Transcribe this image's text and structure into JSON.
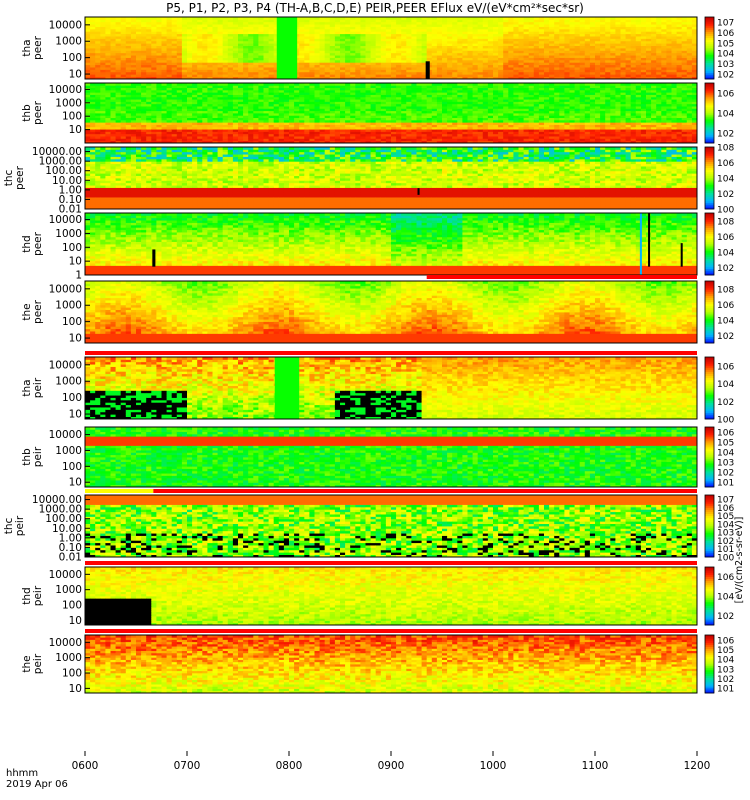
{
  "title": "P5, P1, P2, P3, P4 (TH-A,B,C,D,E) PEIR,PEER EFlux eV/(eV*cm²*sec*sr)",
  "time_axis": {
    "tick_labels": [
      "0600",
      "0700",
      "0800",
      "0900",
      "1000",
      "1100",
      "1200"
    ],
    "tick_values": [
      6,
      7,
      8,
      9,
      10,
      11,
      12
    ],
    "range": [
      6,
      12
    ],
    "label_line1": "hhmm",
    "label_line2": "2019 Apr 06"
  },
  "colorbar_title": "[eV/(cm2-s-sr-eV)]",
  "colors": {
    "scale": [
      "#0000ff",
      "#00b4ff",
      "#00e0a0",
      "#00ff00",
      "#b4ff00",
      "#ffff00",
      "#ffa000",
      "#ff2000",
      "#c00000"
    ],
    "fill_value": "#000000",
    "status_bar": "#ff0000"
  },
  "chart_data": [
    {
      "type": "heatmap",
      "instrument": "PEER",
      "probe": "tha",
      "ylabel": [
        "tha",
        "peer"
      ],
      "y_ticks": [
        "10000",
        "1000",
        "100",
        "10"
      ],
      "y_tick_values": [
        10000,
        1000,
        100,
        10
      ],
      "ylim": [
        5,
        30000
      ],
      "y_scale": "log",
      "colorbar_ticks": [
        "10^7",
        "10^6",
        "10^5",
        "10^4",
        "10^3",
        "10^2"
      ],
      "colorbar_range_log": [
        1.5,
        7.5
      ],
      "pattern": "hot",
      "features": [
        {
          "type": "column",
          "t": [
            7.88,
            8.08
          ],
          "level": 0.38
        },
        {
          "type": "column",
          "t": [
            9.34,
            9.38
          ],
          "fill": "#000000",
          "y_range": [
            5,
            60
          ]
        }
      ],
      "status_bar": null
    },
    {
      "type": "heatmap",
      "instrument": "PEER",
      "probe": "thb",
      "ylabel": [
        "thb",
        "peer"
      ],
      "y_ticks": [
        "10000",
        "1000",
        "100",
        "10"
      ],
      "y_tick_values": [
        10000,
        1000,
        100,
        10
      ],
      "ylim": [
        1,
        30000
      ],
      "y_scale": "log",
      "colorbar_ticks": [
        "10^6",
        "10^4",
        "10^2"
      ],
      "colorbar_range_log": [
        1,
        7
      ],
      "pattern": "bands",
      "features": [],
      "status_bar": null
    },
    {
      "type": "heatmap",
      "instrument": "PEER",
      "probe": "thc",
      "ylabel": [
        "thc",
        "peer"
      ],
      "y_ticks": [
        "10000.00",
        "1000.00",
        "100.00",
        "10.00",
        "1.00",
        "0.10",
        "0.01"
      ],
      "y_tick_values": [
        10000,
        1000,
        100,
        10,
        1,
        0.1,
        0.01
      ],
      "ylim": [
        0.01,
        30000
      ],
      "y_scale": "log",
      "colorbar_ticks": [
        "10^8",
        "10^6",
        "10^4",
        "10^2",
        "10^0"
      ],
      "colorbar_range_log": [
        0,
        8
      ],
      "pattern": "noise",
      "features": [
        {
          "type": "column",
          "t": [
            9.26,
            9.28
          ],
          "fill": "#000000",
          "y_range": [
            0.3,
            1.5
          ]
        }
      ],
      "status_bar": null
    },
    {
      "type": "heatmap",
      "instrument": "PEER",
      "probe": "thd",
      "ylabel": [
        "thd",
        "peer"
      ],
      "y_ticks": [
        "10000",
        "1000",
        "100",
        "10",
        "1"
      ],
      "y_tick_values": [
        10000,
        1000,
        100,
        10,
        1
      ],
      "ylim": [
        1,
        30000
      ],
      "y_scale": "log",
      "colorbar_ticks": [
        "10^8",
        "10^6",
        "10^4",
        "10^2"
      ],
      "colorbar_range_log": [
        1,
        9
      ],
      "pattern": "mixed",
      "features": [
        {
          "type": "column",
          "t": [
            6.66,
            6.69
          ],
          "fill": "#000000",
          "y_range": [
            4,
            70
          ]
        },
        {
          "type": "column",
          "t": [
            11.44,
            11.46
          ],
          "fill": "#00b4ff",
          "y_range": [
            1,
            30000
          ]
        },
        {
          "type": "column",
          "t": [
            11.52,
            11.54
          ],
          "fill": "#000000",
          "y_range": [
            4,
            30000
          ]
        },
        {
          "type": "column",
          "t": [
            11.84,
            11.86
          ],
          "fill": "#000000",
          "y_range": [
            4,
            200
          ]
        }
      ],
      "status_bar": null
    },
    {
      "type": "heatmap",
      "instrument": "PEER",
      "probe": "the",
      "ylabel": [
        "the",
        "peer"
      ],
      "y_ticks": [
        "10000",
        "1000",
        "100",
        "10"
      ],
      "y_tick_values": [
        10000,
        1000,
        100,
        10
      ],
      "ylim": [
        5,
        30000
      ],
      "y_scale": "log",
      "colorbar_ticks": [
        "10^8",
        "10^6",
        "10^4",
        "10^2"
      ],
      "colorbar_range_log": [
        1,
        9
      ],
      "pattern": "mixed2",
      "features": [],
      "status_bar": {
        "color": "#ff0000",
        "t": [
          9.35,
          12.0
        ]
      }
    },
    {
      "type": "heatmap",
      "instrument": "PEIR",
      "probe": "tha",
      "ylabel": [
        "tha",
        "peir"
      ],
      "y_ticks": [
        "10000",
        "1000",
        "100",
        "10"
      ],
      "y_tick_values": [
        10000,
        1000,
        100,
        10
      ],
      "ylim": [
        5,
        30000
      ],
      "y_scale": "log",
      "colorbar_ticks": [
        "10^6",
        "10^4",
        "10^2",
        "10^0"
      ],
      "colorbar_range_log": [
        0,
        7
      ],
      "pattern": "ion_tha",
      "features": [
        {
          "type": "column",
          "t": [
            7.86,
            8.1
          ],
          "level": 0.38
        }
      ],
      "status_bar": {
        "color": "#ff0000",
        "t": [
          6.0,
          12.0
        ]
      }
    },
    {
      "type": "heatmap",
      "instrument": "PEIR",
      "probe": "thb",
      "ylabel": [
        "thb",
        "peir"
      ],
      "y_ticks": [
        "10000",
        "1000",
        "100",
        "10"
      ],
      "y_tick_values": [
        10000,
        1000,
        100,
        10
      ],
      "ylim": [
        5,
        30000
      ],
      "y_scale": "log",
      "colorbar_ticks": [
        "10^6",
        "10^5",
        "10^4",
        "10^3",
        "10^2",
        "10^1"
      ],
      "colorbar_range_log": [
        0.5,
        6.5
      ],
      "pattern": "bands2",
      "features": [],
      "status_bar": null
    },
    {
      "type": "heatmap",
      "instrument": "PEIR",
      "probe": "thc",
      "ylabel": [
        "thc",
        "peir"
      ],
      "y_ticks": [
        "10000.00",
        "1000.00",
        "100.00",
        "10.00",
        "1.00",
        "0.10",
        "0.01"
      ],
      "y_tick_values": [
        10000,
        1000,
        100,
        10,
        1,
        0.1,
        0.01
      ],
      "ylim": [
        0.01,
        30000
      ],
      "y_scale": "log",
      "colorbar_ticks": [
        "10^7",
        "10^6",
        "10^5",
        "10^4",
        "10^3",
        "10^2",
        "10^1",
        "10^0"
      ],
      "colorbar_range_log": [
        0,
        7.5
      ],
      "pattern": "noise2",
      "features": [],
      "status_bar": {
        "color": "#ff0000",
        "t": [
          6.0,
          12.0
        ],
        "prefix_color": "#ffff00",
        "prefix_t": [
          6.0,
          6.67
        ]
      }
    },
    {
      "type": "heatmap",
      "instrument": "PEIR",
      "probe": "thd",
      "ylabel": [
        "thd",
        "peir"
      ],
      "y_ticks": [
        "10000",
        "1000",
        "100",
        "10"
      ],
      "y_tick_values": [
        10000,
        1000,
        100,
        10
      ],
      "ylim": [
        5,
        30000
      ],
      "y_scale": "log",
      "colorbar_ticks": [
        "10^6",
        "10^4",
        "10^2"
      ],
      "colorbar_range_log": [
        1,
        7
      ],
      "pattern": "ion_thd",
      "features": [],
      "status_bar": {
        "color": "#ff0000",
        "t": [
          6.0,
          12.0
        ]
      }
    },
    {
      "type": "heatmap",
      "instrument": "PEIR",
      "probe": "the",
      "ylabel": [
        "the",
        "peir"
      ],
      "y_ticks": [
        "10000",
        "1000",
        "100",
        "10"
      ],
      "y_tick_values": [
        10000,
        1000,
        100,
        10
      ],
      "ylim": [
        5,
        30000
      ],
      "y_scale": "log",
      "colorbar_ticks": [
        "10^6",
        "10^5",
        "10^4",
        "10^3",
        "10^2",
        "10^1"
      ],
      "colorbar_range_log": [
        0.5,
        6.5
      ],
      "pattern": "ion_the",
      "features": [],
      "status_bar": {
        "color": "#ff0000",
        "t": [
          6.0,
          12.0
        ]
      }
    }
  ]
}
